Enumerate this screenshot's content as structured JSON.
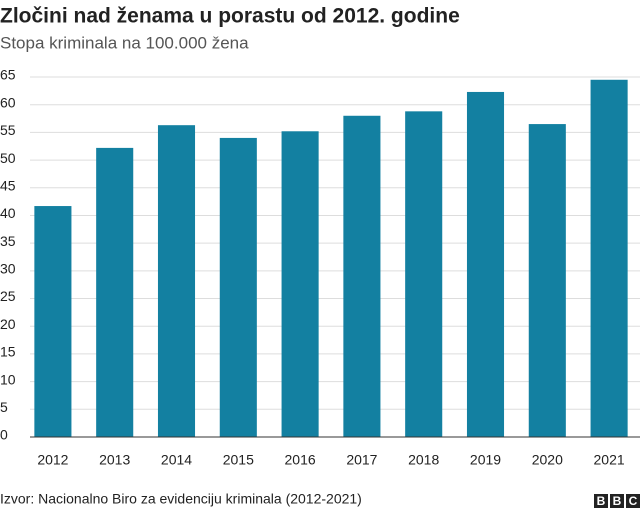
{
  "chart_data": {
    "type": "bar",
    "title": "Zločini nad ženama u porastu od 2012. godine",
    "subtitle": "Stopa kriminala na 100.000 žena",
    "categories": [
      "2012",
      "2013",
      "2014",
      "2015",
      "2016",
      "2017",
      "2018",
      "2019",
      "2020",
      "2021"
    ],
    "values": [
      41.7,
      52.2,
      56.3,
      54.0,
      55.2,
      58.0,
      58.8,
      62.3,
      56.5,
      64.5
    ],
    "color": "#1380a1",
    "ylim": [
      0,
      65
    ],
    "yticks": [
      0,
      5,
      10,
      15,
      20,
      25,
      30,
      35,
      40,
      45,
      50,
      55,
      60,
      65
    ],
    "grid": true,
    "source": "Izvor: Nacionalno Biro za evidenciju kriminala (2012-2021)",
    "logo": [
      "B",
      "B",
      "C"
    ]
  }
}
